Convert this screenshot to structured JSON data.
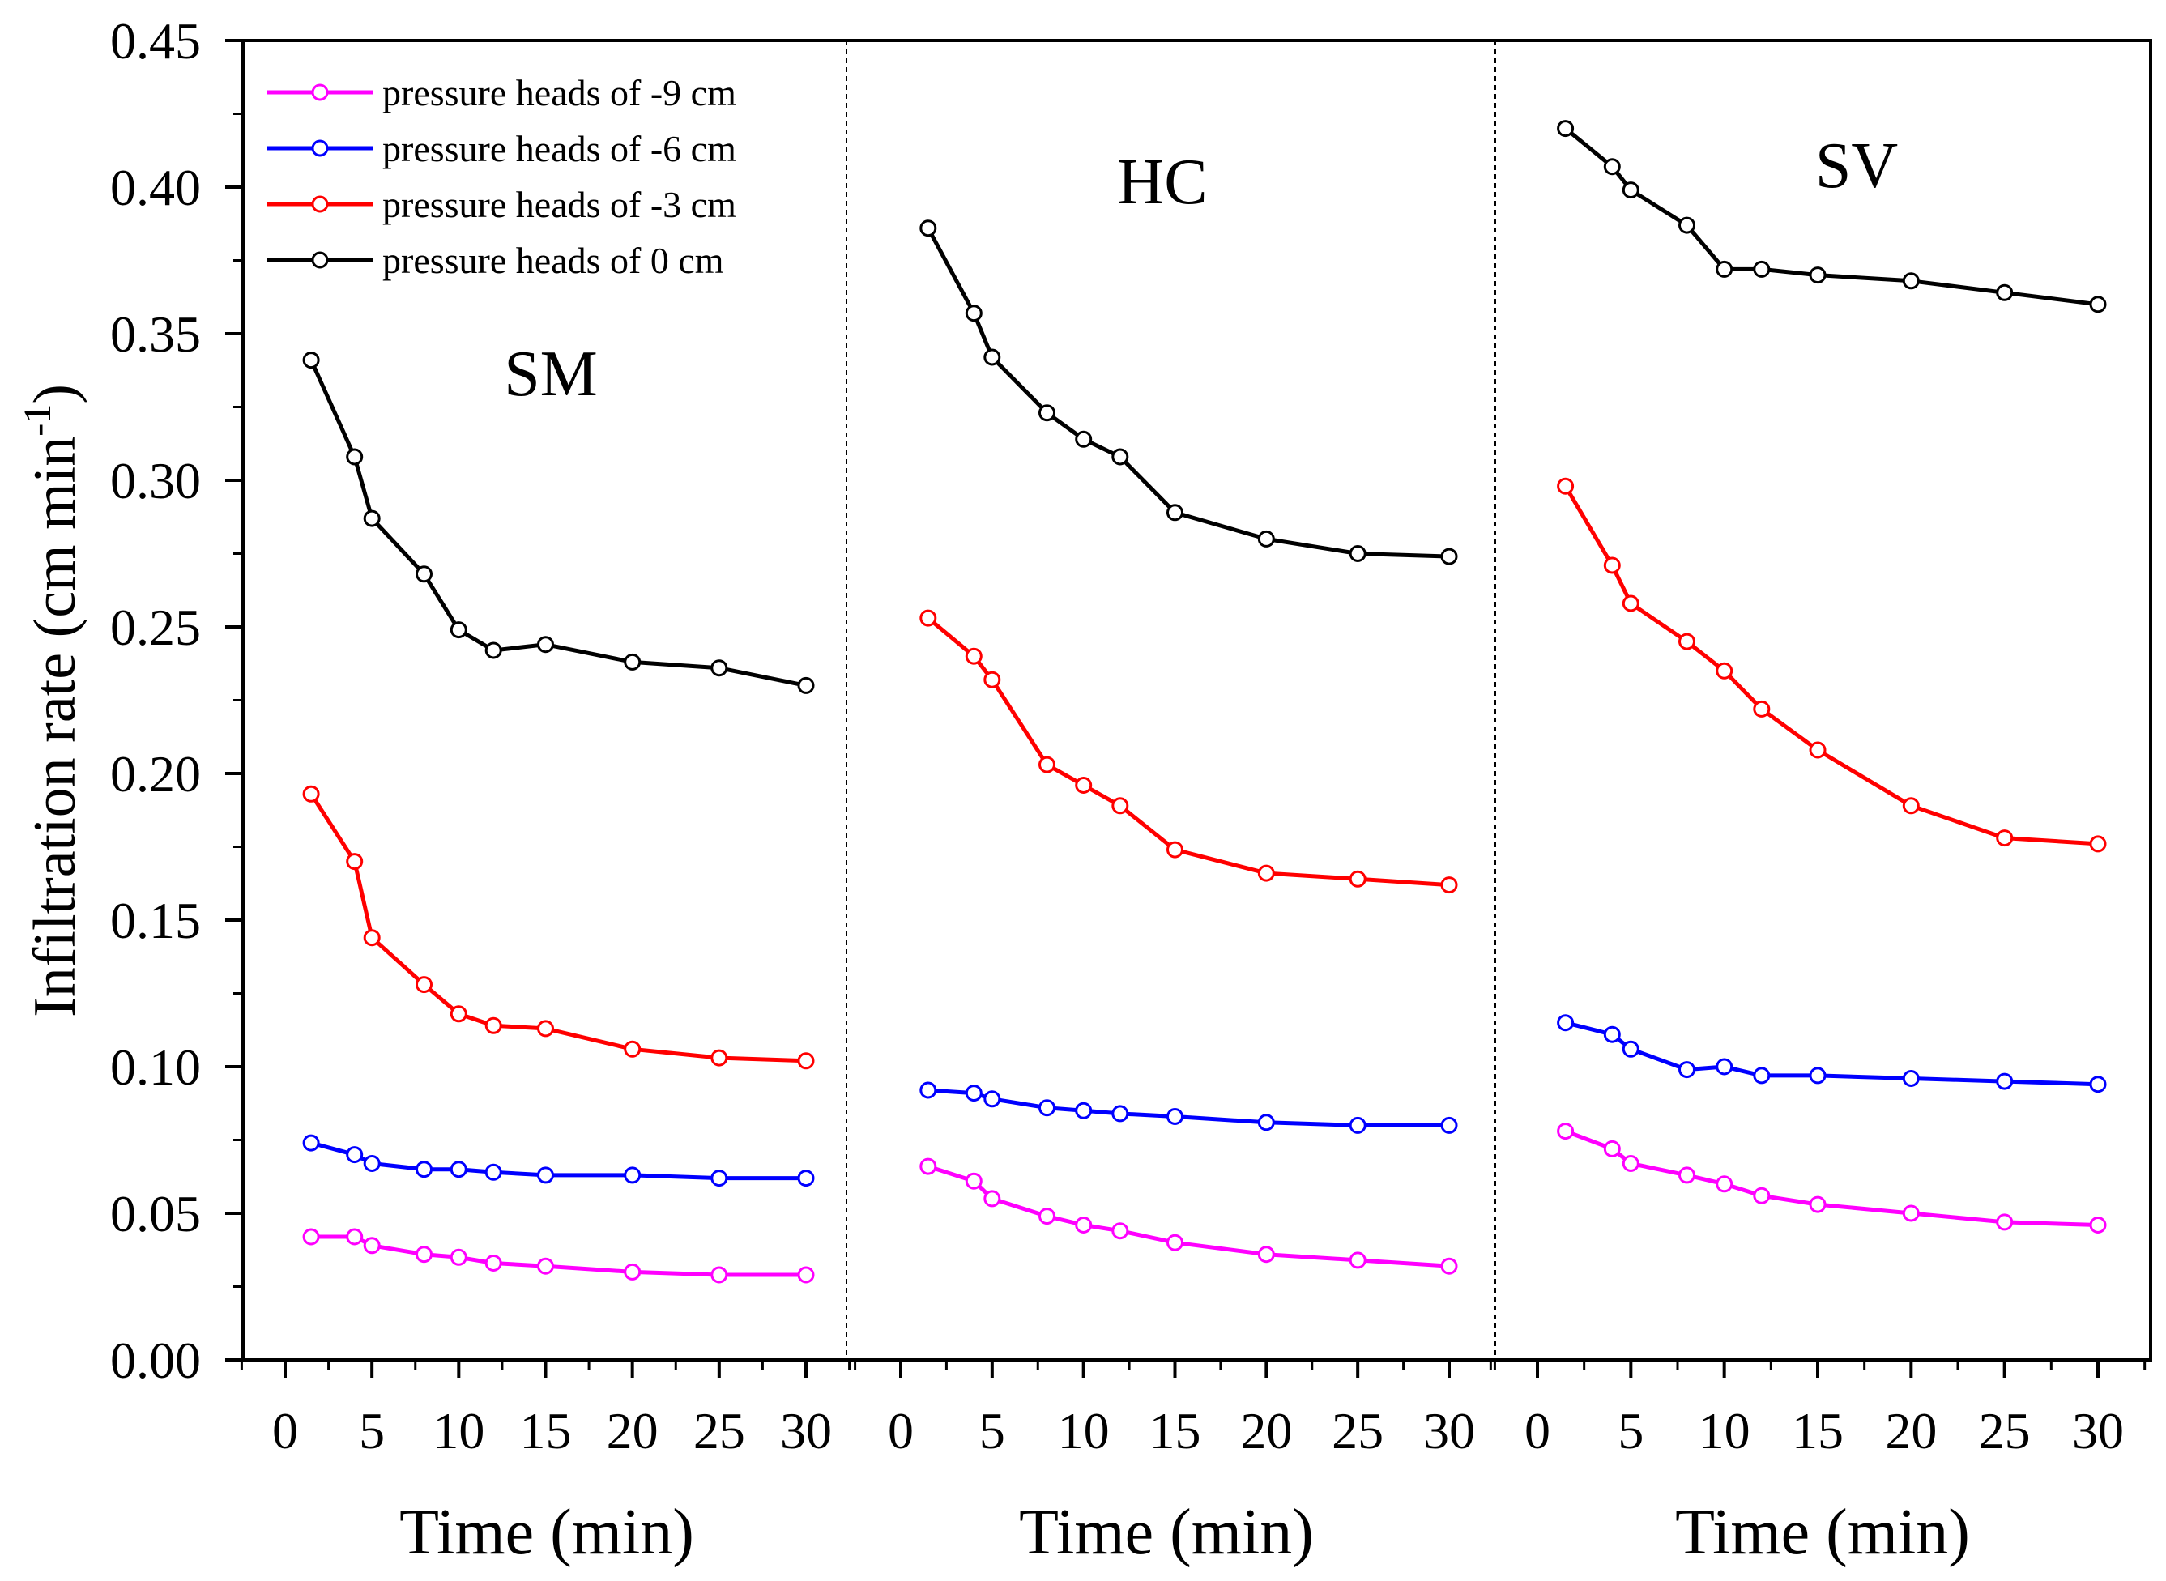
{
  "chart_data": {
    "type": "line",
    "ylabel_main": "Infiltration rate (cm min",
    "ylabel_sup": "-1",
    "ylabel_close": ")",
    "ylim": [
      0,
      0.45
    ],
    "yticks": [
      "0.00",
      "0.05",
      "0.10",
      "0.15",
      "0.20",
      "0.25",
      "0.30",
      "0.35",
      "0.40",
      "0.45"
    ],
    "xticks": [
      "0",
      "5",
      "10",
      "15",
      "20",
      "25",
      "30"
    ],
    "x": [
      1.5,
      4,
      5,
      8,
      10,
      12,
      15,
      20,
      25,
      30
    ],
    "legend": [
      {
        "label": "pressure heads of -9 cm",
        "color": "#ff00ff"
      },
      {
        "label": "pressure heads of -6 cm",
        "color": "#0000ff"
      },
      {
        "label": "pressure heads of -3 cm",
        "color": "#ff0000"
      },
      {
        "label": "pressure heads of 0 cm",
        "color": "#000000"
      }
    ],
    "panels": [
      {
        "title": "SM",
        "xlabel": "Time (min)",
        "series": [
          {
            "name": "pressure heads of -9 cm",
            "color": "#ff00ff",
            "values": [
              0.042,
              0.042,
              0.039,
              0.036,
              0.035,
              0.033,
              0.032,
              0.03,
              0.029,
              0.029
            ]
          },
          {
            "name": "pressure heads of -6 cm",
            "color": "#0000ff",
            "values": [
              0.074,
              0.07,
              0.067,
              0.065,
              0.065,
              0.064,
              0.063,
              0.063,
              0.062,
              0.062
            ]
          },
          {
            "name": "pressure heads of -3 cm",
            "color": "#ff0000",
            "values": [
              0.193,
              0.17,
              0.144,
              0.128,
              0.118,
              0.114,
              0.113,
              0.106,
              0.103,
              0.102
            ]
          },
          {
            "name": "pressure heads of 0 cm",
            "color": "#000000",
            "values": [
              0.341,
              0.308,
              0.287,
              0.268,
              0.249,
              0.242,
              0.244,
              0.238,
              0.236,
              0.23
            ]
          }
        ]
      },
      {
        "title": "HC",
        "xlabel": "Time (min)",
        "series": [
          {
            "name": "pressure heads of -9 cm",
            "color": "#ff00ff",
            "values": [
              0.066,
              0.061,
              0.055,
              0.049,
              0.046,
              0.044,
              0.04,
              0.036,
              0.034,
              0.032
            ]
          },
          {
            "name": "pressure heads of -6 cm",
            "color": "#0000ff",
            "values": [
              0.092,
              0.091,
              0.089,
              0.086,
              0.085,
              0.084,
              0.083,
              0.081,
              0.08,
              0.08
            ]
          },
          {
            "name": "pressure heads of -3 cm",
            "color": "#ff0000",
            "values": [
              0.253,
              0.24,
              0.232,
              0.203,
              0.196,
              0.189,
              0.174,
              0.166,
              0.164,
              0.162
            ]
          },
          {
            "name": "pressure heads of 0 cm",
            "color": "#000000",
            "values": [
              0.386,
              0.357,
              0.342,
              0.323,
              0.314,
              0.308,
              0.289,
              0.28,
              0.275,
              0.274
            ]
          }
        ]
      },
      {
        "title": "SV",
        "xlabel": "Time (min)",
        "series": [
          {
            "name": "pressure heads of -9 cm",
            "color": "#ff00ff",
            "values": [
              0.078,
              0.072,
              0.067,
              0.063,
              0.06,
              0.056,
              0.053,
              0.05,
              0.047,
              0.046
            ]
          },
          {
            "name": "pressure heads of -6 cm",
            "color": "#0000ff",
            "values": [
              0.115,
              0.111,
              0.106,
              0.099,
              0.1,
              0.097,
              0.097,
              0.096,
              0.095,
              0.094
            ]
          },
          {
            "name": "pressure heads of -3 cm",
            "color": "#ff0000",
            "values": [
              0.298,
              0.271,
              0.258,
              0.245,
              0.235,
              0.222,
              0.208,
              0.189,
              0.178,
              0.176
            ]
          },
          {
            "name": "pressure heads of 0 cm",
            "color": "#000000",
            "values": [
              0.42,
              0.407,
              0.399,
              0.387,
              0.372,
              0.372,
              0.37,
              0.368,
              0.364,
              0.36
            ]
          }
        ]
      }
    ]
  }
}
